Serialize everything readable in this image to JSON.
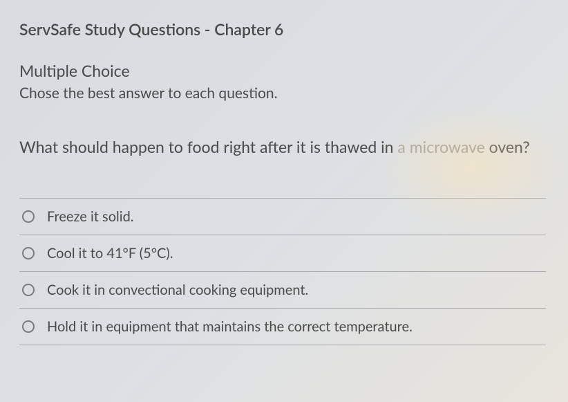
{
  "page": {
    "title": "ServSafe Study Questions - Chapter 6",
    "section_title": "Multiple Choice",
    "instructions": "Chose the best answer to each question.",
    "question_prefix": "What should happen to food right after it is thawed in ",
    "question_faded": "a microwave",
    "question_suffix": " oven?"
  },
  "options": [
    {
      "label": "Freeze it solid."
    },
    {
      "label": "Cool it to 41°F (5°C)."
    },
    {
      "label": "Cook it in convectional cooking equipment."
    },
    {
      "label": "Hold it in equipment that maintains the correct temperature."
    }
  ],
  "styling": {
    "background_gradient_start": "#d8dce0",
    "background_gradient_end": "#e8e4dc",
    "text_color": "#4a4a4a",
    "faded_text_color": "#a89a8a",
    "border_color": "#a8aaae",
    "radio_border_color": "#787a7e",
    "title_fontsize": 23,
    "body_fontsize": 21,
    "option_fontsize": 20
  }
}
